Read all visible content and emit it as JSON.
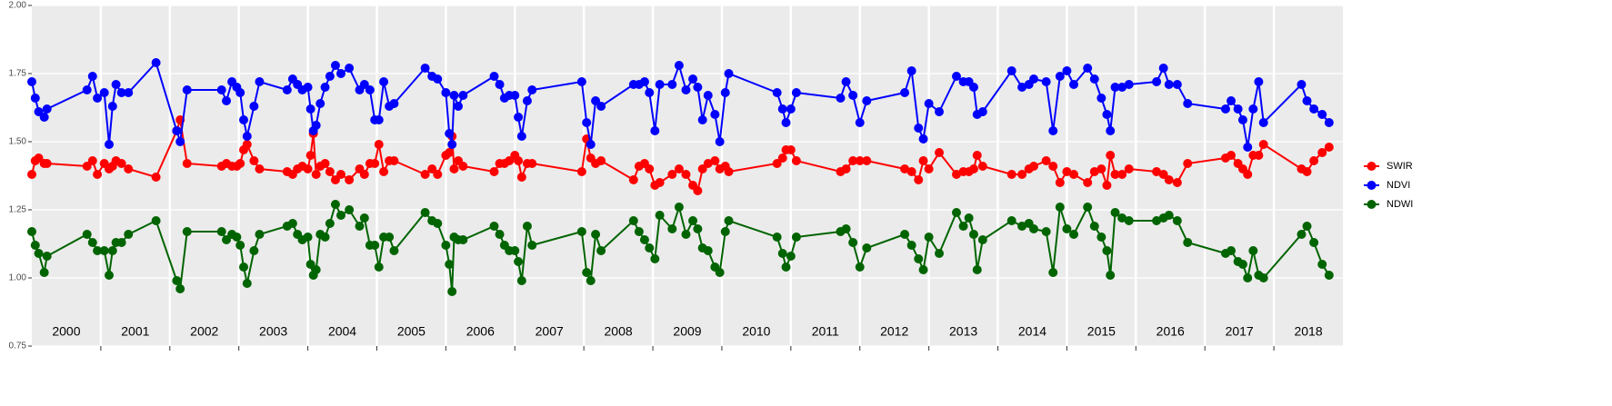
{
  "chart_data": {
    "type": "line",
    "x": [
      2000,
      2000.05,
      2000.1,
      2000.18,
      2000.22,
      2000.8,
      2000.88,
      2000.95,
      2001.05,
      2001.12,
      2001.17,
      2001.22,
      2001.3,
      2001.4,
      2001.8,
      2002.1,
      2002.15,
      2002.25,
      2002.75,
      2002.82,
      2002.9,
      2002.97,
      2003.02,
      2003.07,
      2003.12,
      2003.22,
      2003.3,
      2003.7,
      2003.78,
      2003.85,
      2003.92,
      2004,
      2004.04,
      2004.08,
      2004.12,
      2004.18,
      2004.25,
      2004.32,
      2004.4,
      2004.48,
      2004.6,
      2004.75,
      2004.82,
      2004.9,
      2004.97,
      2005.03,
      2005.1,
      2005.18,
      2005.25,
      2005.7,
      2005.8,
      2005.88,
      2006,
      2006.05,
      2006.09,
      2006.12,
      2006.18,
      2006.25,
      2006.7,
      2006.78,
      2006.85,
      2006.92,
      2007,
      2007.05,
      2007.1,
      2007.18,
      2007.25,
      2007.97,
      2008.04,
      2008.1,
      2008.17,
      2008.25,
      2008.72,
      2008.8,
      2008.88,
      2008.95,
      2009.03,
      2009.1,
      2009.28,
      2009.38,
      2009.48,
      2009.58,
      2009.65,
      2009.72,
      2009.8,
      2009.9,
      2009.97,
      2010.05,
      2010.1,
      2010.8,
      2010.88,
      2010.93,
      2011,
      2011.08,
      2011.72,
      2011.8,
      2011.9,
      2012,
      2012.1,
      2012.65,
      2012.75,
      2012.85,
      2012.92,
      2013,
      2013.15,
      2013.4,
      2013.5,
      2013.58,
      2013.65,
      2013.7,
      2013.78,
      2014.2,
      2014.35,
      2014.45,
      2014.52,
      2014.7,
      2014.8,
      2014.9,
      2015,
      2015.1,
      2015.3,
      2015.4,
      2015.5,
      2015.58,
      2015.63,
      2015.7,
      2015.8,
      2015.9,
      2016.3,
      2016.4,
      2016.48,
      2016.6,
      2016.75,
      2017.3,
      2017.38,
      2017.48,
      2017.55,
      2017.62,
      2017.7,
      2017.78,
      2017.85,
      2018.4,
      2018.48,
      2018.58,
      2018.7,
      2018.8
    ],
    "series": [
      {
        "name": "SWIR",
        "color": "#ff0000",
        "values": [
          1.38,
          1.43,
          1.44,
          1.42,
          1.42,
          1.41,
          1.43,
          1.38,
          1.42,
          1.4,
          1.41,
          1.43,
          1.42,
          1.4,
          1.37,
          1.54,
          1.58,
          1.42,
          1.41,
          1.42,
          1.41,
          1.41,
          1.42,
          1.47,
          1.49,
          1.43,
          1.4,
          1.39,
          1.38,
          1.4,
          1.41,
          1.4,
          1.45,
          1.53,
          1.38,
          1.41,
          1.42,
          1.39,
          1.36,
          1.38,
          1.36,
          1.4,
          1.38,
          1.42,
          1.42,
          1.49,
          1.39,
          1.43,
          1.43,
          1.38,
          1.4,
          1.38,
          1.45,
          1.46,
          1.52,
          1.4,
          1.43,
          1.41,
          1.39,
          1.42,
          1.42,
          1.43,
          1.45,
          1.43,
          1.37,
          1.42,
          1.42,
          1.39,
          1.51,
          1.44,
          1.42,
          1.43,
          1.36,
          1.41,
          1.42,
          1.4,
          1.34,
          1.35,
          1.38,
          1.4,
          1.38,
          1.34,
          1.32,
          1.4,
          1.42,
          1.43,
          1.4,
          1.41,
          1.39,
          1.42,
          1.44,
          1.47,
          1.47,
          1.43,
          1.39,
          1.4,
          1.43,
          1.43,
          1.43,
          1.4,
          1.39,
          1.36,
          1.43,
          1.4,
          1.46,
          1.38,
          1.39,
          1.39,
          1.4,
          1.45,
          1.41,
          1.38,
          1.38,
          1.4,
          1.41,
          1.43,
          1.41,
          1.35,
          1.39,
          1.38,
          1.35,
          1.39,
          1.4,
          1.34,
          1.45,
          1.38,
          1.38,
          1.4,
          1.39,
          1.38,
          1.36,
          1.35,
          1.42,
          1.44,
          1.45,
          1.42,
          1.4,
          1.38,
          1.45,
          1.45,
          1.49,
          1.4,
          1.39,
          1.43,
          1.46,
          1.48
        ]
      },
      {
        "name": "NDVI",
        "color": "#0000ff",
        "values": [
          1.72,
          1.66,
          1.61,
          1.59,
          1.62,
          1.69,
          1.74,
          1.66,
          1.68,
          1.49,
          1.63,
          1.71,
          1.68,
          1.68,
          1.79,
          1.54,
          1.5,
          1.69,
          1.69,
          1.65,
          1.72,
          1.7,
          1.68,
          1.58,
          1.52,
          1.63,
          1.72,
          1.69,
          1.73,
          1.71,
          1.69,
          1.7,
          1.62,
          1.54,
          1.56,
          1.64,
          1.7,
          1.74,
          1.78,
          1.75,
          1.77,
          1.69,
          1.71,
          1.69,
          1.58,
          1.58,
          1.72,
          1.63,
          1.64,
          1.77,
          1.74,
          1.73,
          1.68,
          1.53,
          1.49,
          1.67,
          1.63,
          1.67,
          1.74,
          1.71,
          1.66,
          1.67,
          1.67,
          1.59,
          1.52,
          1.65,
          1.69,
          1.72,
          1.57,
          1.49,
          1.65,
          1.63,
          1.71,
          1.71,
          1.72,
          1.68,
          1.54,
          1.71,
          1.71,
          1.78,
          1.69,
          1.73,
          1.7,
          1.58,
          1.67,
          1.6,
          1.5,
          1.68,
          1.75,
          1.68,
          1.62,
          1.57,
          1.62,
          1.68,
          1.66,
          1.72,
          1.67,
          1.57,
          1.65,
          1.68,
          1.76,
          1.55,
          1.51,
          1.64,
          1.61,
          1.74,
          1.72,
          1.72,
          1.7,
          1.6,
          1.61,
          1.76,
          1.7,
          1.71,
          1.73,
          1.72,
          1.54,
          1.74,
          1.76,
          1.71,
          1.77,
          1.73,
          1.66,
          1.6,
          1.54,
          1.7,
          1.7,
          1.71,
          1.72,
          1.77,
          1.71,
          1.71,
          1.64,
          1.62,
          1.65,
          1.62,
          1.58,
          1.48,
          1.62,
          1.72,
          1.57,
          1.71,
          1.65,
          1.62,
          1.6,
          1.57
        ]
      },
      {
        "name": "NDWI",
        "color": "#006400",
        "values": [
          1.17,
          1.12,
          1.09,
          1.02,
          1.08,
          1.16,
          1.13,
          1.1,
          1.1,
          1.01,
          1.1,
          1.13,
          1.13,
          1.16,
          1.21,
          0.99,
          0.96,
          1.17,
          1.17,
          1.14,
          1.16,
          1.15,
          1.12,
          1.04,
          0.98,
          1.1,
          1.16,
          1.19,
          1.2,
          1.16,
          1.14,
          1.15,
          1.05,
          1.01,
          1.03,
          1.16,
          1.15,
          1.2,
          1.27,
          1.23,
          1.25,
          1.19,
          1.22,
          1.12,
          1.12,
          1.04,
          1.15,
          1.15,
          1.1,
          1.24,
          1.21,
          1.2,
          1.12,
          1.05,
          0.95,
          1.15,
          1.14,
          1.14,
          1.19,
          1.16,
          1.12,
          1.1,
          1.1,
          1.06,
          0.99,
          1.19,
          1.12,
          1.17,
          1.02,
          0.99,
          1.16,
          1.1,
          1.21,
          1.17,
          1.14,
          1.11,
          1.07,
          1.23,
          1.18,
          1.26,
          1.16,
          1.21,
          1.18,
          1.11,
          1.1,
          1.04,
          1.02,
          1.17,
          1.21,
          1.15,
          1.09,
          1.04,
          1.08,
          1.15,
          1.17,
          1.18,
          1.13,
          1.04,
          1.11,
          1.16,
          1.12,
          1.07,
          1.03,
          1.15,
          1.09,
          1.24,
          1.19,
          1.22,
          1.16,
          1.03,
          1.14,
          1.21,
          1.19,
          1.2,
          1.18,
          1.17,
          1.02,
          1.26,
          1.18,
          1.16,
          1.26,
          1.19,
          1.15,
          1.1,
          1.01,
          1.24,
          1.22,
          1.21,
          1.21,
          1.22,
          1.23,
          1.21,
          1.13,
          1.09,
          1.1,
          1.06,
          1.05,
          1.0,
          1.1,
          1.01,
          1.0,
          1.16,
          1.19,
          1.13,
          1.05,
          1.01
        ]
      }
    ],
    "xlim": [
      2000,
      2019
    ],
    "xticks": [
      {
        "value": 2000.5,
        "label": "2000"
      },
      {
        "value": 2001.5,
        "label": "2001"
      },
      {
        "value": 2002.5,
        "label": "2002"
      },
      {
        "value": 2003.5,
        "label": "2003"
      },
      {
        "value": 2004.5,
        "label": "2004"
      },
      {
        "value": 2005.5,
        "label": "2005"
      },
      {
        "value": 2006.5,
        "label": "2006"
      },
      {
        "value": 2007.5,
        "label": "2007"
      },
      {
        "value": 2008.5,
        "label": "2008"
      },
      {
        "value": 2009.5,
        "label": "2009"
      },
      {
        "value": 2010.5,
        "label": "2010"
      },
      {
        "value": 2011.5,
        "label": "2011"
      },
      {
        "value": 2012.5,
        "label": "2012"
      },
      {
        "value": 2013.5,
        "label": "2013"
      },
      {
        "value": 2014.5,
        "label": "2014"
      },
      {
        "value": 2015.5,
        "label": "2015"
      },
      {
        "value": 2016.5,
        "label": "2016"
      },
      {
        "value": 2017.5,
        "label": "2017"
      },
      {
        "value": 2018.5,
        "label": "2018"
      }
    ],
    "ylim": [
      0.75,
      2
    ],
    "yticks": [
      {
        "value": 2,
        "label": "2.00"
      },
      1.75,
      {
        "value": 1.5,
        "label": "1.50"
      },
      1.25,
      {
        "value": 1,
        "label": "1.00"
      },
      0.75
    ],
    "grid": true,
    "legend": "right"
  }
}
